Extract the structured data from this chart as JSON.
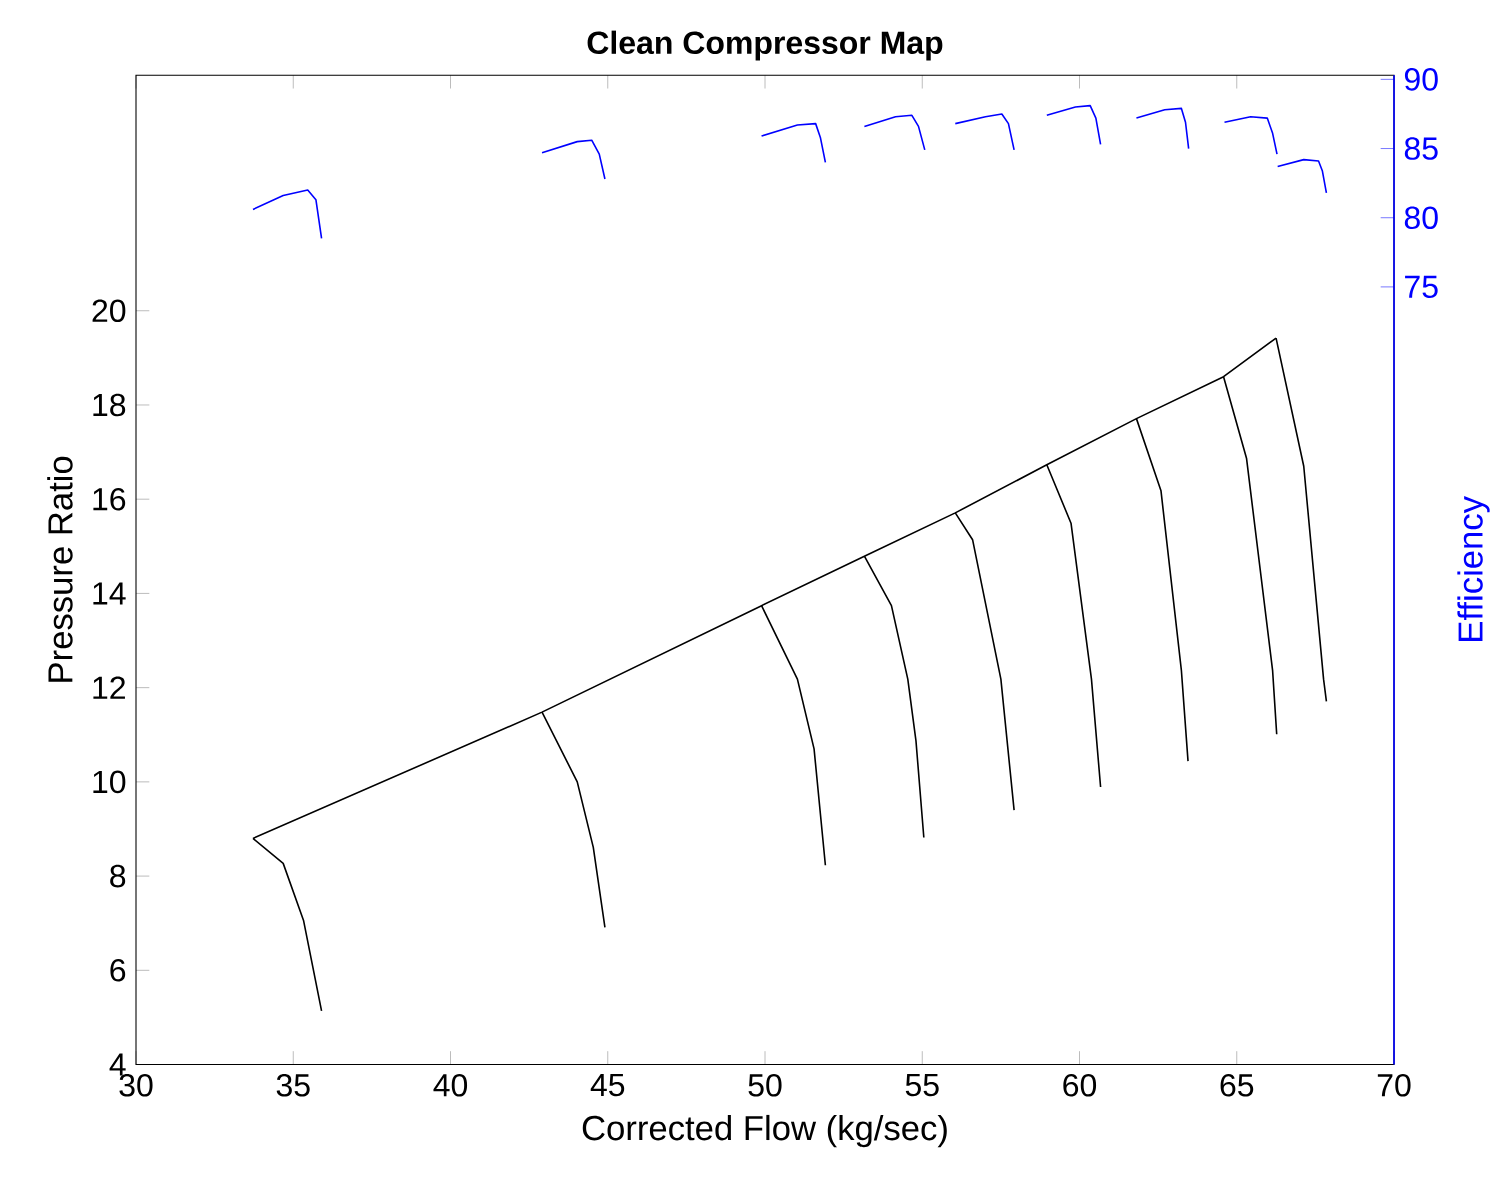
{
  "chart_data": {
    "type": "line",
    "title": "Clean Compressor Map",
    "xlabel": "Corrected Flow (kg/sec)",
    "ylabel": "Pressure Ratio",
    "y2label": "Efficiency",
    "xlim": [
      30,
      70
    ],
    "xticks": [
      30,
      35,
      40,
      45,
      50,
      55,
      60,
      65,
      70
    ],
    "ylim": [
      4,
      25
    ],
    "yticks": [
      4,
      6,
      8,
      10,
      12,
      14,
      16,
      18,
      20
    ],
    "y2lim": [
      18.8,
      90.3
    ],
    "y2ticks": [
      75,
      80,
      85,
      90
    ],
    "series": [
      {
        "color": "#000000",
        "x": [
          33.72,
          42.91,
          49.89,
          53.16,
          56.05,
          58.96,
          61.81,
          64.58,
          66.25
        ],
        "values": [
          8.8,
          11.48,
          13.74,
          14.79,
          15.71,
          16.73,
          17.71,
          18.6,
          19.42
        ]
      },
      {
        "color": "#000000",
        "x": [
          33.72,
          34.68,
          35.33,
          35.9
        ],
        "values": [
          8.8,
          8.27,
          7.05,
          5.14
        ]
      },
      {
        "color": "#000000",
        "x": [
          42.91,
          44.03,
          44.54,
          44.91
        ],
        "values": [
          11.48,
          10.0,
          8.61,
          6.91
        ]
      },
      {
        "color": "#000000",
        "x": [
          49.89,
          51.03,
          51.56,
          51.92
        ],
        "values": [
          13.74,
          12.18,
          10.7,
          8.23
        ]
      },
      {
        "color": "#000000",
        "x": [
          53.16,
          54.02,
          54.54,
          54.8,
          55.05
        ],
        "values": [
          14.79,
          13.74,
          12.18,
          10.87,
          8.82
        ]
      },
      {
        "color": "#000000",
        "x": [
          56.05,
          56.6,
          57.5,
          57.92
        ],
        "values": [
          15.71,
          15.14,
          12.18,
          9.4
        ]
      },
      {
        "color": "#000000",
        "x": [
          58.96,
          59.73,
          60.38,
          60.67
        ],
        "values": [
          16.73,
          15.49,
          12.18,
          9.89
        ]
      },
      {
        "color": "#000000",
        "x": [
          61.81,
          62.59,
          63.24,
          63.45
        ],
        "values": [
          17.71,
          16.18,
          12.36,
          10.44
        ]
      },
      {
        "color": "#000000",
        "x": [
          64.58,
          65.31,
          66.14,
          66.27
        ],
        "values": [
          18.6,
          16.87,
          12.36,
          11.01
        ]
      },
      {
        "color": "#000000",
        "x": [
          66.25,
          67.13,
          67.76,
          67.85
        ],
        "values": [
          19.42,
          16.7,
          12.18,
          11.71
        ]
      },
      {
        "color": "#0000ff",
        "axis": "y2",
        "x": [
          33.72,
          34.68,
          35.46,
          35.72,
          35.9
        ],
        "values": [
          80.6,
          81.6,
          82.0,
          81.3,
          78.5
        ]
      },
      {
        "color": "#0000ff",
        "axis": "y2",
        "x": [
          42.91,
          44.03,
          44.49,
          44.73,
          44.91
        ],
        "values": [
          84.7,
          85.5,
          85.6,
          84.6,
          82.8
        ]
      },
      {
        "color": "#0000ff",
        "axis": "y2",
        "x": [
          49.89,
          51.03,
          51.61,
          51.76,
          51.92
        ],
        "values": [
          85.9,
          86.7,
          86.8,
          85.8,
          84.0
        ]
      },
      {
        "color": "#0000ff",
        "axis": "y2",
        "x": [
          53.16,
          54.15,
          54.67,
          54.88,
          55.08
        ],
        "values": [
          86.6,
          87.3,
          87.4,
          86.6,
          84.9
        ]
      },
      {
        "color": "#0000ff",
        "axis": "y2",
        "x": [
          56.05,
          57.01,
          57.53,
          57.74,
          57.92
        ],
        "values": [
          86.8,
          87.3,
          87.5,
          86.8,
          84.9
        ]
      },
      {
        "color": "#0000ff",
        "axis": "y2",
        "x": [
          58.96,
          59.87,
          60.34,
          60.52,
          60.67
        ],
        "values": [
          87.4,
          88.0,
          88.1,
          87.2,
          85.3
        ]
      },
      {
        "color": "#0000ff",
        "axis": "y2",
        "x": [
          61.81,
          62.71,
          63.24,
          63.37,
          63.47
        ],
        "values": [
          87.2,
          87.8,
          87.9,
          86.9,
          85.0
        ]
      },
      {
        "color": "#0000ff",
        "axis": "y2",
        "x": [
          64.61,
          65.44,
          65.97,
          66.14,
          66.28
        ],
        "values": [
          86.9,
          87.3,
          87.2,
          86.1,
          84.6
        ]
      },
      {
        "color": "#0000ff",
        "axis": "y2",
        "x": [
          66.3,
          67.13,
          67.6,
          67.72,
          67.85
        ],
        "values": [
          83.7,
          84.2,
          84.1,
          83.4,
          81.8
        ]
      }
    ]
  }
}
